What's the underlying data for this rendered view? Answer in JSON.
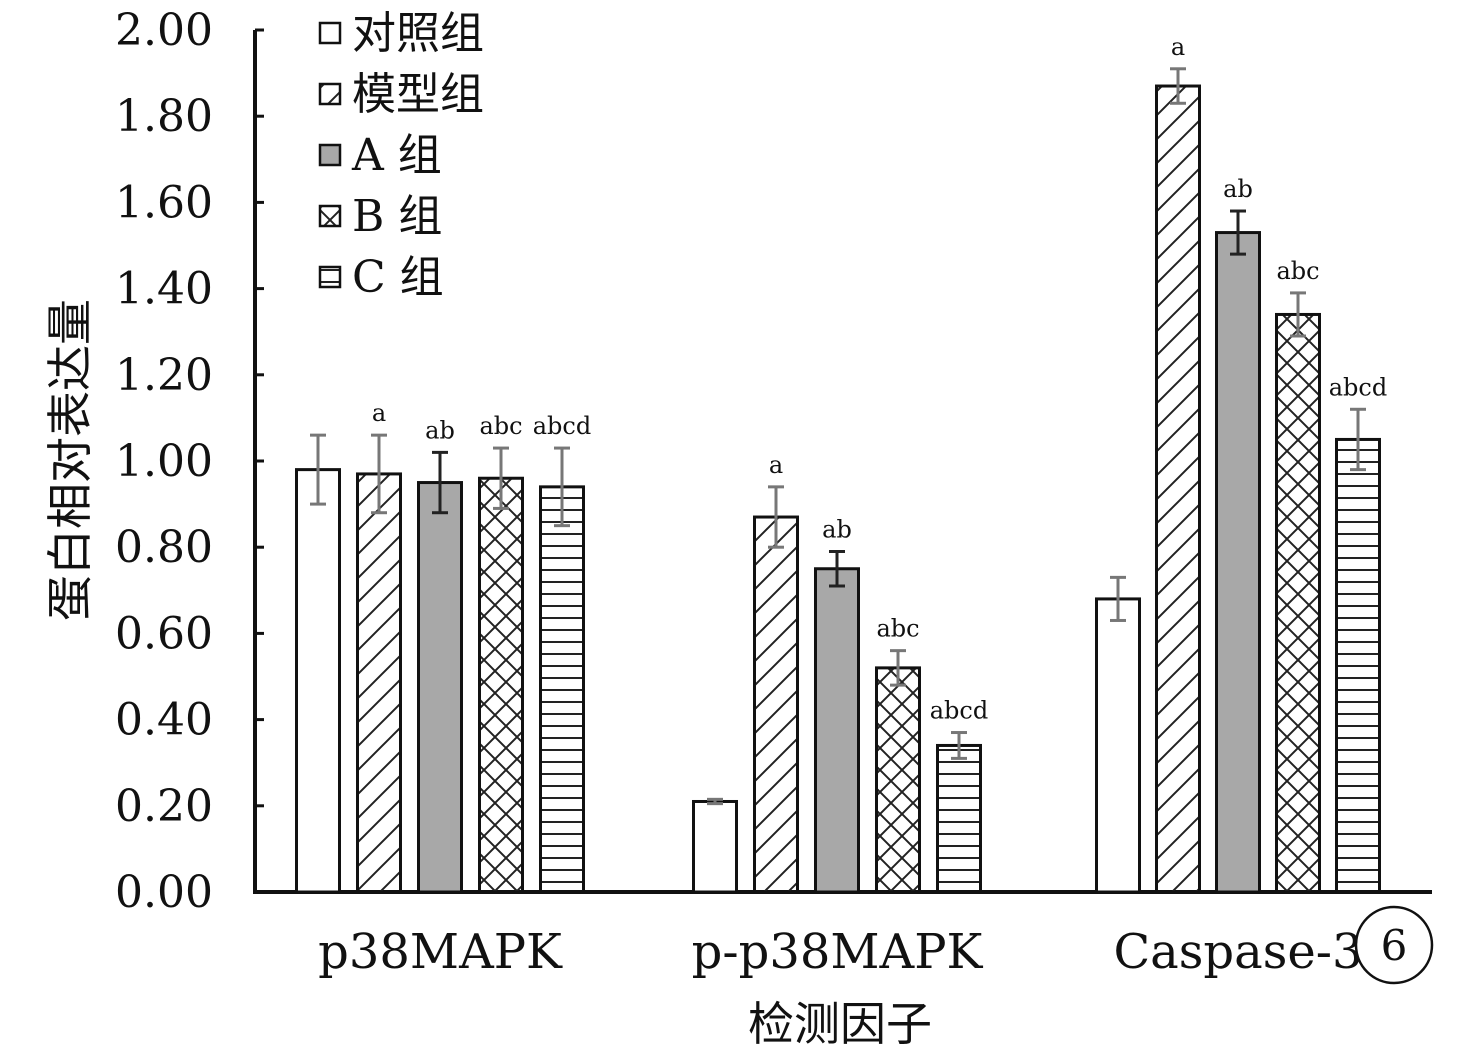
{
  "chart_data": {
    "type": "bar",
    "ylabel": "蛋白相对表达量",
    "xlabel": "检测因子",
    "ylim": [
      0,
      2.0
    ],
    "yticks": [
      "0.00",
      "0.20",
      "0.40",
      "0.60",
      "0.80",
      "1.00",
      "1.20",
      "1.40",
      "1.60",
      "1.80",
      "2.00"
    ],
    "categories": [
      "p38MAPK",
      "p-p38MAPK",
      "Caspase-3"
    ],
    "legend_position": "top-left",
    "grid": false,
    "series": [
      {
        "name": "对照组",
        "pattern": "none",
        "fill": "#ffffff",
        "values": [
          0.98,
          0.21,
          0.68
        ],
        "errors": [
          0.08,
          0.005,
          0.05
        ],
        "sig": [
          "",
          "",
          ""
        ]
      },
      {
        "name": "模型组",
        "pattern": "diagonal",
        "fill": "#ffffff",
        "values": [
          0.97,
          0.87,
          1.87
        ],
        "errors": [
          0.09,
          0.07,
          0.04
        ],
        "sig": [
          "a",
          "a",
          "a"
        ]
      },
      {
        "name": "A 组",
        "pattern": "solid",
        "fill": "#a8a8a8",
        "values": [
          0.95,
          0.75,
          1.53
        ],
        "errors": [
          0.07,
          0.04,
          0.05
        ],
        "sig": [
          "ab",
          "ab",
          "ab"
        ]
      },
      {
        "name": "B 组",
        "pattern": "crosshatch",
        "fill": "#ffffff",
        "values": [
          0.96,
          0.52,
          1.34
        ],
        "errors": [
          0.07,
          0.04,
          0.05
        ],
        "sig": [
          "abc",
          "abc",
          "abc"
        ]
      },
      {
        "name": "C 组",
        "pattern": "horizontal",
        "fill": "#ffffff",
        "values": [
          0.94,
          0.34,
          1.05
        ],
        "errors": [
          0.09,
          0.03,
          0.07
        ],
        "sig": [
          "abcd",
          "abcd",
          "abcd"
        ]
      }
    ]
  },
  "badge": "6"
}
